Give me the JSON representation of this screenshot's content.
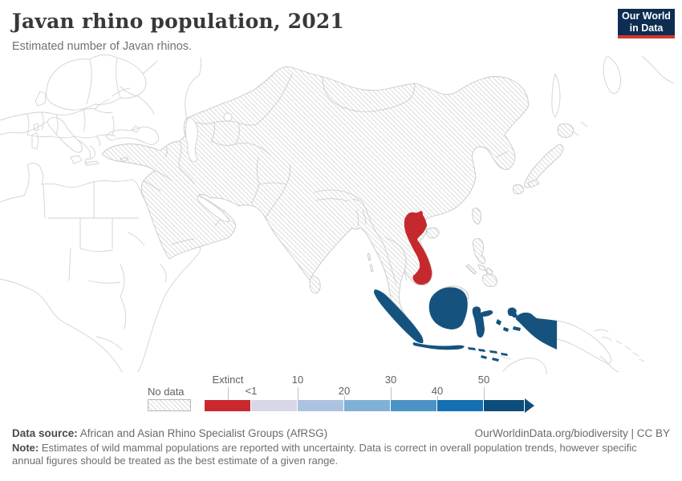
{
  "header": {
    "title": "Javan rhino population, 2021",
    "subtitle": "Estimated number of Javan rhinos."
  },
  "logo": {
    "line1": "Our World",
    "line2": "in Data",
    "bg_color": "#0d2d52",
    "accent_color": "#d4372c"
  },
  "legend": {
    "no_data_label": "No data",
    "tick_labels": [
      {
        "label": "Extinct",
        "tick": true
      },
      {
        "label": "<1",
        "tick": false
      },
      {
        "label": "10",
        "tick": true
      },
      {
        "label": "20",
        "tick": true
      },
      {
        "label": "30",
        "tick": true
      },
      {
        "label": "40",
        "tick": true
      },
      {
        "label": "50",
        "tick": true
      }
    ],
    "segments": [
      {
        "range": "Extinct",
        "color": "#c9292e"
      },
      {
        "range": "<1-10",
        "color": "#d7d7e8"
      },
      {
        "range": "10-20",
        "color": "#abc3e1"
      },
      {
        "range": "20-30",
        "color": "#7fb0d6"
      },
      {
        "range": "30-40",
        "color": "#4b93c6"
      },
      {
        "range": "40-50",
        "color": "#1470b2"
      },
      {
        "range": "50+",
        "color": "#0e4d7a"
      }
    ]
  },
  "map": {
    "extinct_color": "#c5292e",
    "max_color": "#15537e",
    "no_data_style": "diagonal-hatch",
    "outline_color": "#d4d4d4"
  },
  "chart_data": {
    "type": "choropleth_map",
    "title": "Javan rhino population, 2021",
    "subtitle": "Estimated number of Javan rhinos.",
    "region_shown": "Asia (surrounding regions drawn as plain outlines)",
    "colorscale_labels": [
      "Extinct",
      "<1",
      "10",
      "20",
      "30",
      "40",
      "50"
    ],
    "colorscale_colors": [
      "#c9292e",
      "#d7d7e8",
      "#abc3e1",
      "#7fb0d6",
      "#4b93c6",
      "#1470b2",
      "#0e4d7a"
    ],
    "data": [
      {
        "entity": "Indonesia",
        "value": "50+",
        "color": "#15537e"
      },
      {
        "entity": "Vietnam",
        "value": "Extinct",
        "color": "#c5292e"
      },
      {
        "entity": "Other Asian countries",
        "value": "No data",
        "color": "hatched"
      }
    ]
  },
  "footer": {
    "source_label": "Data source:",
    "source_text": " African and Asian Rhino Specialist Groups (AfRSG)",
    "link_text": "OurWorldinData.org/biodiversity | CC BY",
    "note_label": "Note:",
    "note_text": " Estimates of wild mammal populations are reported with uncertainty. Data is correct in overall population trends, however specific annual figures should be treated as the best estimate of a given range."
  }
}
